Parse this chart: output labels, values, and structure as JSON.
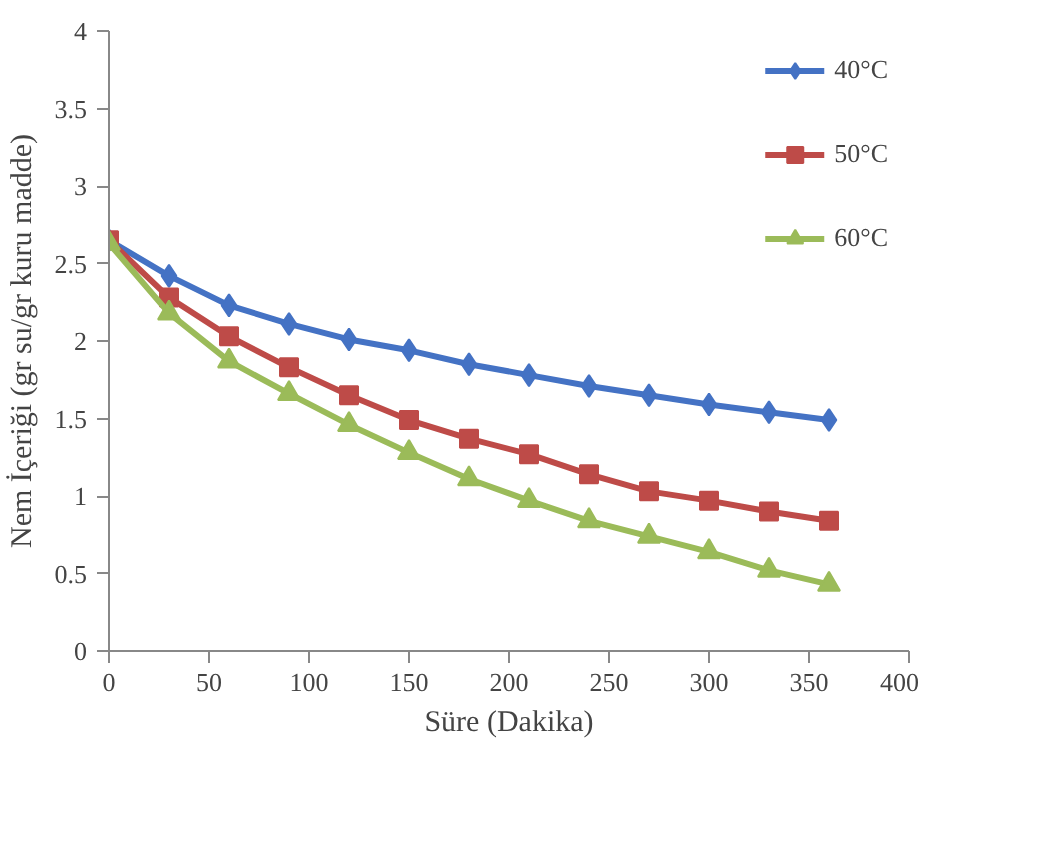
{
  "chart_data": {
    "type": "line",
    "xlabel": "Süre (Dakika)",
    "ylabel": "Nem İçeriği (gr su/gr kuru madde)",
    "x": [
      0,
      30,
      60,
      90,
      120,
      150,
      180,
      210,
      240,
      270,
      300,
      330,
      360
    ],
    "series": [
      {
        "name": "40°C",
        "color": "#4472c4",
        "marker": "diamond",
        "values": [
          2.65,
          2.42,
          2.23,
          2.11,
          2.01,
          1.94,
          1.85,
          1.78,
          1.71,
          1.65,
          1.59,
          1.54,
          1.49
        ]
      },
      {
        "name": "50°C",
        "color": "#be4b48",
        "marker": "square",
        "values": [
          2.65,
          2.28,
          2.03,
          1.83,
          1.65,
          1.49,
          1.37,
          1.27,
          1.14,
          1.03,
          0.97,
          0.9,
          0.84
        ]
      },
      {
        "name": "60°C",
        "color": "#9bbb59",
        "marker": "triangle",
        "values": [
          2.63,
          2.18,
          1.87,
          1.66,
          1.46,
          1.28,
          1.11,
          0.97,
          0.84,
          0.74,
          0.64,
          0.52,
          0.43
        ]
      }
    ],
    "xlim": [
      0,
      400
    ],
    "xticks": [
      0,
      50,
      100,
      150,
      200,
      250,
      300,
      350,
      400
    ],
    "ylim": [
      0,
      4
    ],
    "yticks": [
      0,
      0.5,
      1,
      1.5,
      2,
      2.5,
      3,
      3.5,
      4
    ],
    "grid": false,
    "legend": "top right",
    "line_style": "solid"
  }
}
